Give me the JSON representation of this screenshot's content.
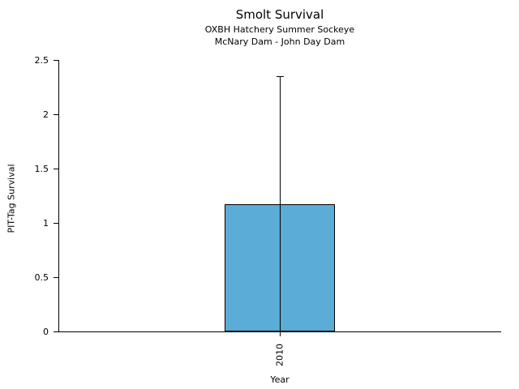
{
  "chart_data": {
    "type": "bar",
    "title": "Smolt Survival",
    "subtitle1": "OXBH Hatchery Summer Sockeye",
    "subtitle2": "McNary Dam - John Day Dam",
    "xlabel": "Year",
    "ylabel": "PIT-Tag Survival",
    "categories": [
      "2010"
    ],
    "values": [
      1.17
    ],
    "error_upper": [
      2.35
    ],
    "ylim": [
      0,
      2.5
    ],
    "yticks": [
      0,
      0.5,
      1,
      1.5,
      2,
      2.5
    ],
    "grid": false,
    "legend": false,
    "bar_color": "#5BACD6",
    "bar_edge_color": "#000000",
    "axis_color": "#000000",
    "background_color": "#ffffff"
  }
}
